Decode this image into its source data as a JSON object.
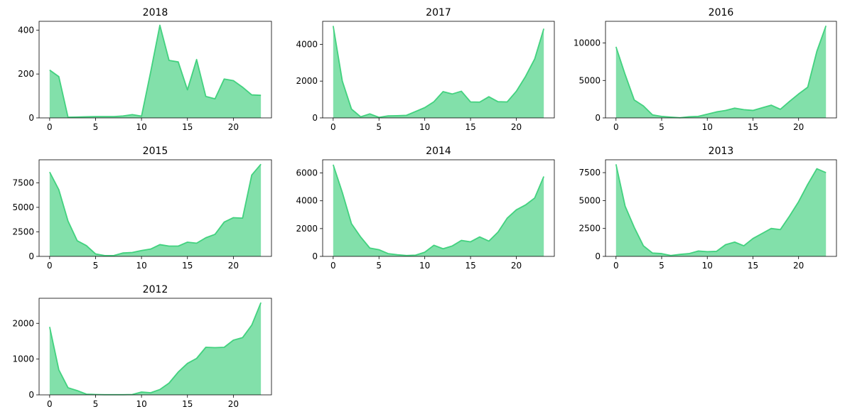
{
  "chart_data": [
    {
      "type": "area",
      "title": "2018",
      "x": [
        0,
        1,
        2,
        3,
        4,
        5,
        6,
        7,
        8,
        9,
        10,
        11,
        12,
        13,
        14,
        15,
        16,
        17,
        18,
        19,
        20,
        21,
        22,
        23
      ],
      "values": [
        218,
        188,
        3,
        4,
        5,
        6,
        6,
        6,
        9,
        15,
        8,
        210,
        422,
        262,
        255,
        128,
        266,
        98,
        87,
        177,
        170,
        140,
        105,
        103
      ],
      "ylim": [
        0,
        440
      ],
      "yticks": [
        0,
        200,
        400
      ],
      "xticks": [
        0,
        5,
        10,
        15,
        20
      ],
      "color": "#2ecc71"
    },
    {
      "type": "area",
      "title": "2017",
      "x": [
        0,
        1,
        2,
        3,
        4,
        5,
        6,
        7,
        8,
        9,
        10,
        11,
        12,
        13,
        14,
        15,
        16,
        17,
        18,
        19,
        20,
        21,
        22,
        23
      ],
      "values": [
        5000,
        2000,
        480,
        60,
        220,
        30,
        110,
        120,
        140,
        350,
        560,
        880,
        1430,
        1300,
        1450,
        870,
        860,
        1150,
        880,
        870,
        1450,
        2250,
        3200,
        4850
      ],
      "ylim": [
        0,
        5250
      ],
      "yticks": [
        0,
        2000,
        4000
      ],
      "xticks": [
        0,
        5,
        10,
        15,
        20
      ],
      "color": "#2ecc71"
    },
    {
      "type": "area",
      "title": "2016",
      "x": [
        0,
        1,
        2,
        3,
        4,
        5,
        6,
        7,
        8,
        9,
        10,
        11,
        12,
        13,
        14,
        15,
        16,
        17,
        18,
        19,
        20,
        21,
        22,
        23
      ],
      "values": [
        9500,
        5800,
        2400,
        1600,
        400,
        200,
        100,
        20,
        150,
        200,
        500,
        800,
        1000,
        1300,
        1100,
        1000,
        1350,
        1700,
        1150,
        2200,
        3200,
        4100,
        8900,
        12300
      ],
      "ylim": [
        0,
        12900
      ],
      "yticks": [
        0,
        5000,
        10000
      ],
      "xticks": [
        0,
        5,
        10,
        15,
        20
      ],
      "color": "#2ecc71"
    },
    {
      "type": "area",
      "title": "2015",
      "x": [
        0,
        1,
        2,
        3,
        4,
        5,
        6,
        7,
        8,
        9,
        10,
        11,
        12,
        13,
        14,
        15,
        16,
        17,
        18,
        19,
        20,
        21,
        22,
        23
      ],
      "values": [
        8600,
        6800,
        3600,
        1600,
        1100,
        250,
        80,
        90,
        350,
        400,
        600,
        750,
        1200,
        1050,
        1050,
        1450,
        1350,
        1900,
        2250,
        3500,
        3950,
        3900,
        8300,
        9400
      ],
      "ylim": [
        0,
        9850
      ],
      "yticks": [
        0,
        2500,
        5000,
        7500
      ],
      "xticks": [
        0,
        5,
        10,
        15,
        20
      ],
      "color": "#2ecc71"
    },
    {
      "type": "area",
      "title": "2014",
      "x": [
        0,
        1,
        2,
        3,
        4,
        5,
        6,
        7,
        8,
        9,
        10,
        11,
        12,
        13,
        14,
        15,
        16,
        17,
        18,
        19,
        20,
        21,
        22,
        23
      ],
      "values": [
        6600,
        4600,
        2350,
        1400,
        600,
        480,
        200,
        120,
        60,
        90,
        300,
        800,
        550,
        750,
        1150,
        1050,
        1400,
        1100,
        1750,
        2750,
        3350,
        3700,
        4200,
        5750
      ],
      "ylim": [
        0,
        6950
      ],
      "yticks": [
        0,
        2000,
        4000,
        6000
      ],
      "xticks": [
        0,
        5,
        10,
        15,
        20
      ],
      "color": "#2ecc71"
    },
    {
      "type": "area",
      "title": "2013",
      "x": [
        0,
        1,
        2,
        3,
        4,
        5,
        6,
        7,
        8,
        9,
        10,
        11,
        12,
        13,
        14,
        15,
        16,
        17,
        18,
        19,
        20,
        21,
        22,
        23
      ],
      "values": [
        8250,
        4500,
        2600,
        950,
        300,
        250,
        80,
        180,
        250,
        480,
        420,
        450,
        1050,
        1280,
        950,
        1600,
        2050,
        2500,
        2400,
        3600,
        4900,
        6450,
        7850,
        7500
      ],
      "ylim": [
        0,
        8650
      ],
      "yticks": [
        0,
        2500,
        5000,
        7500
      ],
      "xticks": [
        0,
        5,
        10,
        15,
        20
      ],
      "color": "#2ecc71"
    },
    {
      "type": "area",
      "title": "2012",
      "x": [
        0,
        1,
        2,
        3,
        4,
        5,
        6,
        7,
        8,
        9,
        10,
        11,
        12,
        13,
        14,
        15,
        16,
        17,
        18,
        19,
        20,
        21,
        22,
        23
      ],
      "values": [
        1900,
        700,
        200,
        120,
        20,
        10,
        5,
        5,
        5,
        10,
        80,
        60,
        150,
        330,
        640,
        880,
        1020,
        1330,
        1320,
        1330,
        1530,
        1600,
        1950,
        2580
      ],
      "ylim": [
        0,
        2700
      ],
      "yticks": [
        0,
        1000,
        2000
      ],
      "xticks": [
        0,
        5,
        10,
        15,
        20
      ],
      "color": "#2ecc71"
    }
  ]
}
